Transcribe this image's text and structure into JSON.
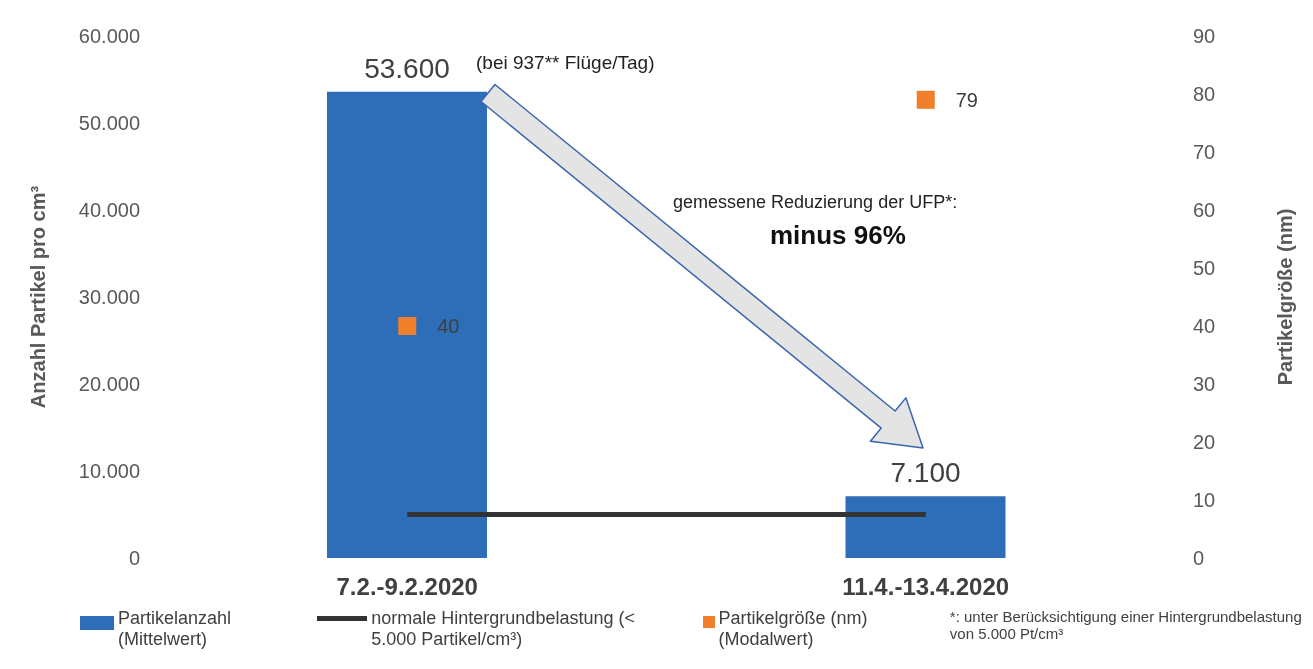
{
  "chart_data": {
    "type": "bar",
    "categories": [
      "7.2.-9.2.2020",
      "11.4.-13.4.2020"
    ],
    "ylabel": "Anzahl Partikel pro cm³",
    "y2label": "Partikelgröße (nm)",
    "series": [
      {
        "name": "Partikelanzahl (Mittelwert)",
        "color": "#2e6db8",
        "values": [
          53600,
          7100
        ],
        "value_labels": [
          "53.600",
          "7.100"
        ]
      },
      {
        "name": "normale Hintergrundbelastung (< 5.000 Partikel/cm³)",
        "type": "line",
        "color": "#333333",
        "values": [
          5000,
          5000
        ]
      },
      {
        "name": "Partikelgröße (nm) (Modalwert)",
        "type": "scatter",
        "axis": "y2",
        "marker": "square",
        "color": "#f07f2c",
        "values": [
          40,
          79
        ],
        "value_labels": [
          "40",
          "79"
        ]
      }
    ],
    "ylim": [
      0,
      60000
    ],
    "yticks": [
      {
        "value": 0,
        "label": "0"
      },
      {
        "value": 10000,
        "label": "10.000"
      },
      {
        "value": 20000,
        "label": "20.000"
      },
      {
        "value": 30000,
        "label": "30.000"
      },
      {
        "value": 40000,
        "label": "40.000"
      },
      {
        "value": 50000,
        "label": "50.000"
      },
      {
        "value": 60000,
        "label": "60.000"
      }
    ],
    "y2lim": [
      0,
      90
    ],
    "y2ticks": [
      0,
      10,
      20,
      30,
      40,
      50,
      60,
      70,
      80,
      90
    ],
    "annotations": [
      "(bei 937** Flüge/Tag)",
      "gemessene Reduzierung der UFP*:",
      "minus 96%",
      "*: unter Berücksichtigung einer Hintergrundbelastung von 5.000 Pt/cm³"
    ],
    "legend": "bottom"
  }
}
